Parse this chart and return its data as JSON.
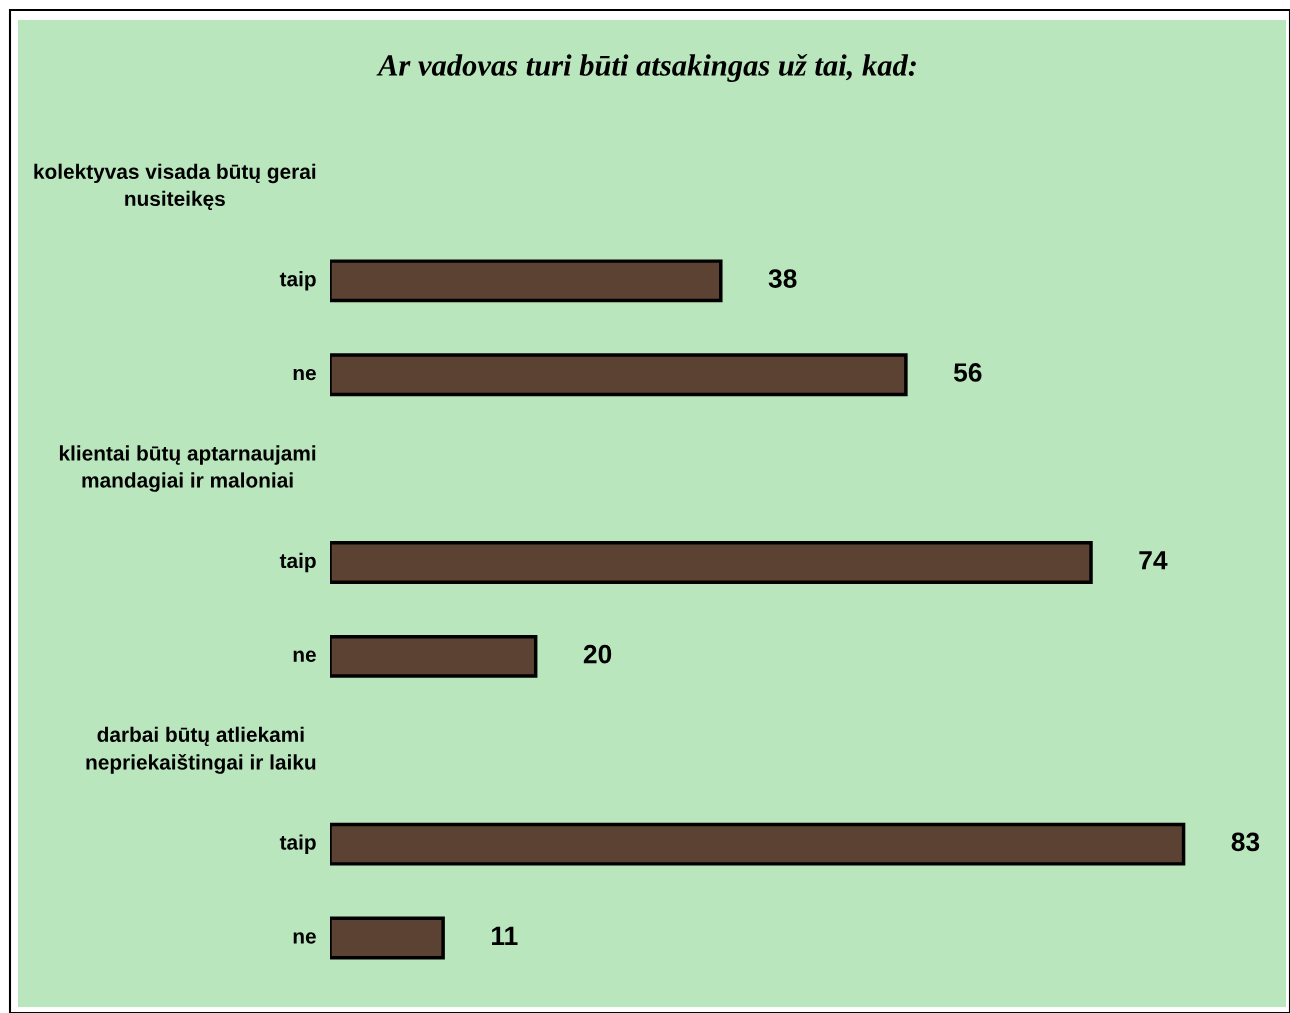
{
  "chart_data": {
    "type": "bar",
    "orientation": "horizontal",
    "title": "Ar vadovas turi būti atsakingas už tai, kad:",
    "categories": [
      "kolektyvas visada būtų gerai nusiteikęs",
      "taip",
      "ne",
      "klientai būtų aptarnaujami mandagiai ir maloniai",
      "taip",
      "ne",
      "darbai būtų atliekami nepriekaištingai ir laiku",
      "taip",
      "ne"
    ],
    "values": [
      null,
      38,
      56,
      null,
      74,
      20,
      null,
      83,
      11
    ],
    "color": "#5b4232",
    "data_labels": true
  }
}
